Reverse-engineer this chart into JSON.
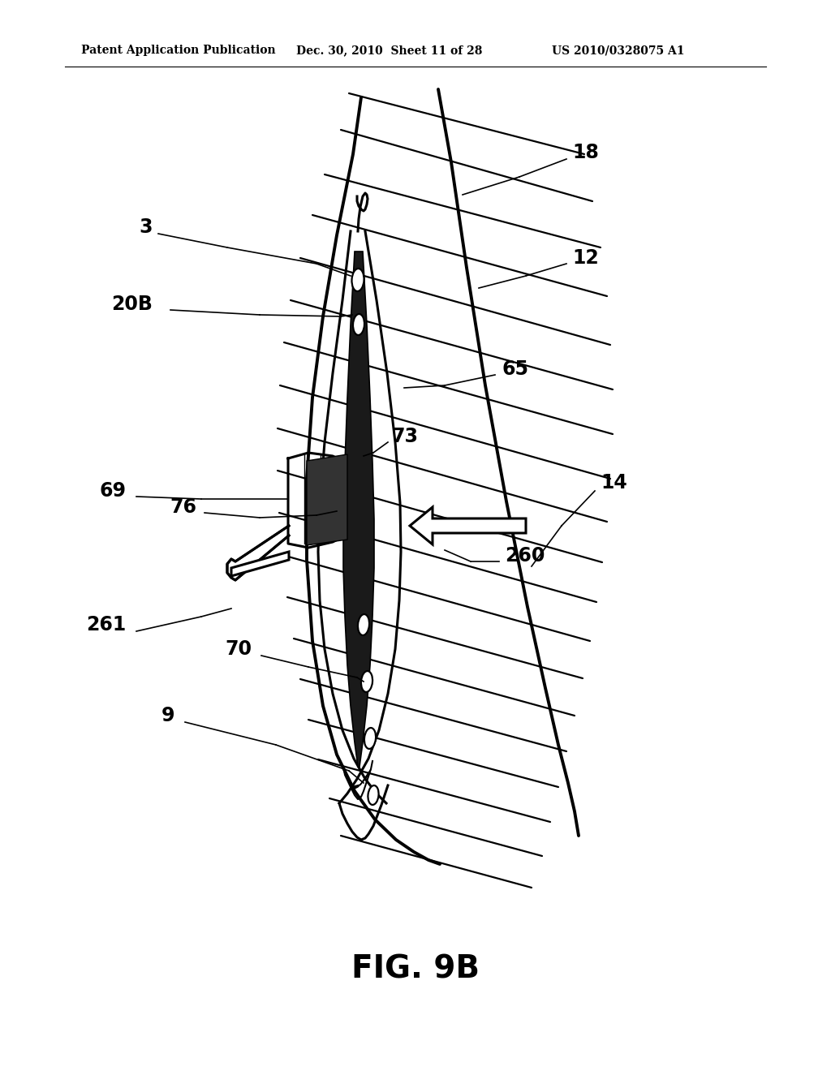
{
  "title": "FIG. 9B",
  "header_left": "Patent Application Publication",
  "header_center": "Dec. 30, 2010  Sheet 11 of 28",
  "header_right": "US 2010/0328075 A1",
  "background_color": "#ffffff",
  "black": "#000000",
  "gray_fill": "#1a1a1a",
  "white": "#ffffff",
  "lw_main": 2.2,
  "lw_thick": 2.8,
  "lw_thin": 1.6,
  "label_fontsize": 17,
  "header_fontsize": 10,
  "title_fontsize": 28
}
